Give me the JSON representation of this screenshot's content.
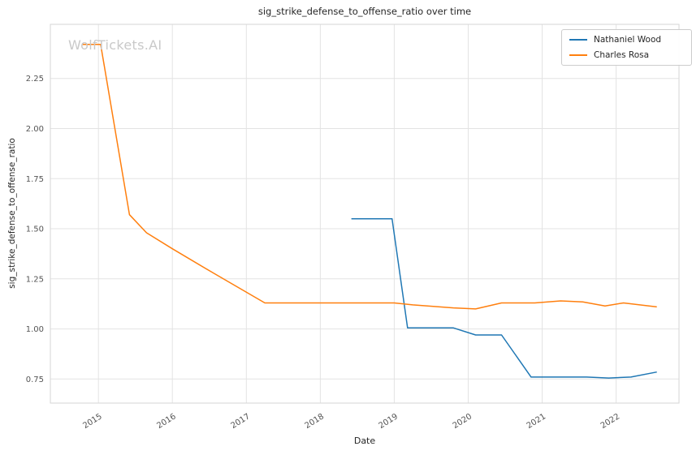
{
  "watermark": "WolfTickets.AI",
  "chart_data": {
    "type": "line",
    "title": "sig_strike_defense_to_offense_ratio over time",
    "xlabel": "Date",
    "ylabel": "sig_strike_defense_to_offense_ratio",
    "xlim": [
      2014.35,
      2022.85
    ],
    "ylim": [
      0.63,
      2.52
    ],
    "xticks": [
      2015,
      2016,
      2017,
      2018,
      2019,
      2020,
      2021,
      2022
    ],
    "yticks": [
      0.75,
      1.0,
      1.25,
      1.5,
      1.75,
      2.0,
      2.25
    ],
    "grid": true,
    "legend_position": "upper right",
    "series": [
      {
        "name": "Nathaniel Wood",
        "color": "#1f77b4",
        "x": [
          2018.42,
          2018.97,
          2019.18,
          2019.8,
          2020.1,
          2020.45,
          2020.85,
          2021.3,
          2021.6,
          2021.9,
          2022.2,
          2022.55
        ],
        "y": [
          1.55,
          1.55,
          1.005,
          1.005,
          0.97,
          0.97,
          0.76,
          0.76,
          0.76,
          0.755,
          0.76,
          0.785
        ]
      },
      {
        "name": "Charles Rosa",
        "color": "#ff7f0e",
        "x": [
          2014.78,
          2015.03,
          2015.42,
          2015.65,
          2016.0,
          2016.55,
          2017.25,
          2017.8,
          2018.4,
          2019.0,
          2019.25,
          2019.8,
          2020.1,
          2020.45,
          2020.9,
          2021.25,
          2021.55,
          2021.85,
          2022.1,
          2022.55
        ],
        "y": [
          2.42,
          2.42,
          1.57,
          1.48,
          1.4,
          1.28,
          1.13,
          1.13,
          1.13,
          1.13,
          1.12,
          1.105,
          1.1,
          1.13,
          1.13,
          1.14,
          1.135,
          1.115,
          1.13,
          1.11
        ]
      }
    ]
  }
}
